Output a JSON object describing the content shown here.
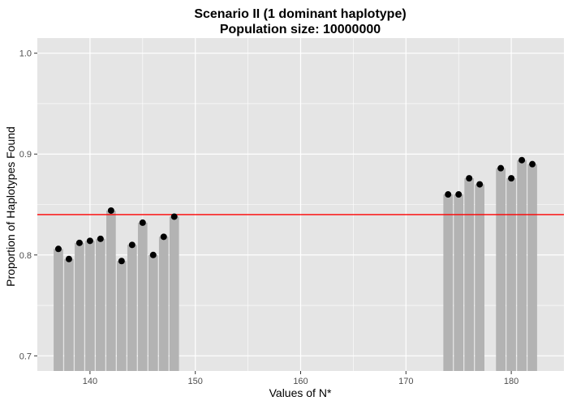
{
  "chart_data": {
    "type": "bar",
    "title_line1": "Scenario II (1 dominant haplotype)",
    "title_line2": "Population size: 10000000",
    "xlabel": "Values of N*",
    "ylabel": "Proportion of Haplotypes Found",
    "xlim": [
      135,
      185
    ],
    "ylim": [
      0.685,
      1.015
    ],
    "x_ticks": [
      {
        "value": 140,
        "label": "140"
      },
      {
        "value": 150,
        "label": "150"
      },
      {
        "value": 160,
        "label": "160"
      },
      {
        "value": 170,
        "label": "170"
      },
      {
        "value": 180,
        "label": "180"
      }
    ],
    "y_ticks": [
      {
        "value": 0.7,
        "label": "0.7"
      },
      {
        "value": 0.8,
        "label": "0.8"
      },
      {
        "value": 0.9,
        "label": "0.9"
      },
      {
        "value": 1.0,
        "label": "1.0"
      }
    ],
    "grid": true,
    "x": [
      137,
      138,
      139,
      140,
      141,
      142,
      143,
      144,
      145,
      146,
      147,
      148,
      174,
      175,
      176,
      177,
      179,
      180,
      181,
      182
    ],
    "values": [
      0.806,
      0.796,
      0.812,
      0.814,
      0.816,
      0.844,
      0.794,
      0.81,
      0.832,
      0.8,
      0.818,
      0.838,
      0.86,
      0.86,
      0.876,
      0.87,
      0.886,
      0.876,
      0.894,
      0.89
    ],
    "reference_line": 0.84,
    "colors": {
      "panel": "#e5e5e5",
      "grid": "#ffffff",
      "bar": "#b3b3b3",
      "point": "#000000",
      "reference_line": "#ff0000"
    }
  }
}
